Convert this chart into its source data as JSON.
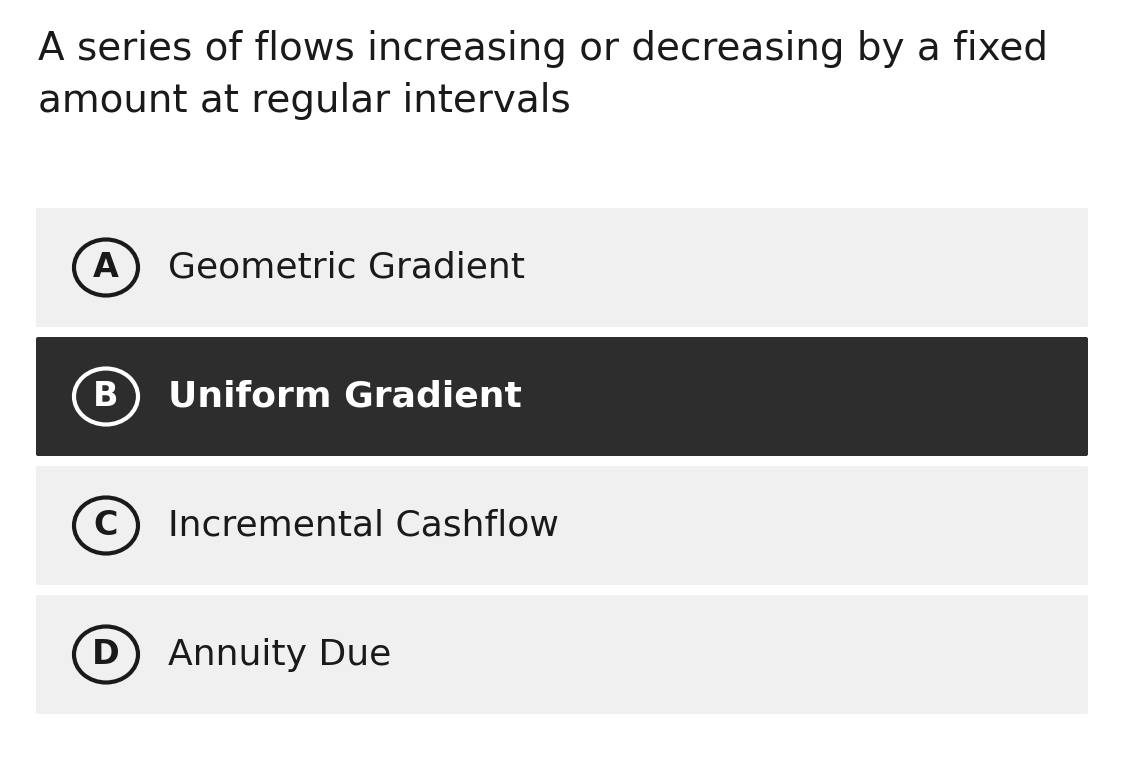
{
  "question_line1": "A series of flows increasing or decreasing by a fixed",
  "question_line2": "amount at regular intervals",
  "question_fontsize": 28,
  "question_color": "#1a1a1a",
  "options": [
    {
      "label": "A",
      "text": "Geometric Gradient",
      "selected": false
    },
    {
      "label": "B",
      "text": "Uniform Gradient",
      "selected": true
    },
    {
      "label": "C",
      "text": "Incremental Cashflow",
      "selected": false
    },
    {
      "label": "D",
      "text": "Annuity Due",
      "selected": false
    }
  ],
  "bg_color": "#ffffff",
  "option_bg_normal": "#f0f0f0",
  "option_bg_selected": "#2d2d2d",
  "option_text_normal": "#1a1a1a",
  "option_text_selected": "#ffffff",
  "circle_color_normal": "#1a1a1a",
  "circle_color_selected": "#ffffff",
  "option_fontsize": 26,
  "label_fontsize": 24,
  "fig_width": 11.24,
  "fig_height": 7.83,
  "dpi": 100
}
